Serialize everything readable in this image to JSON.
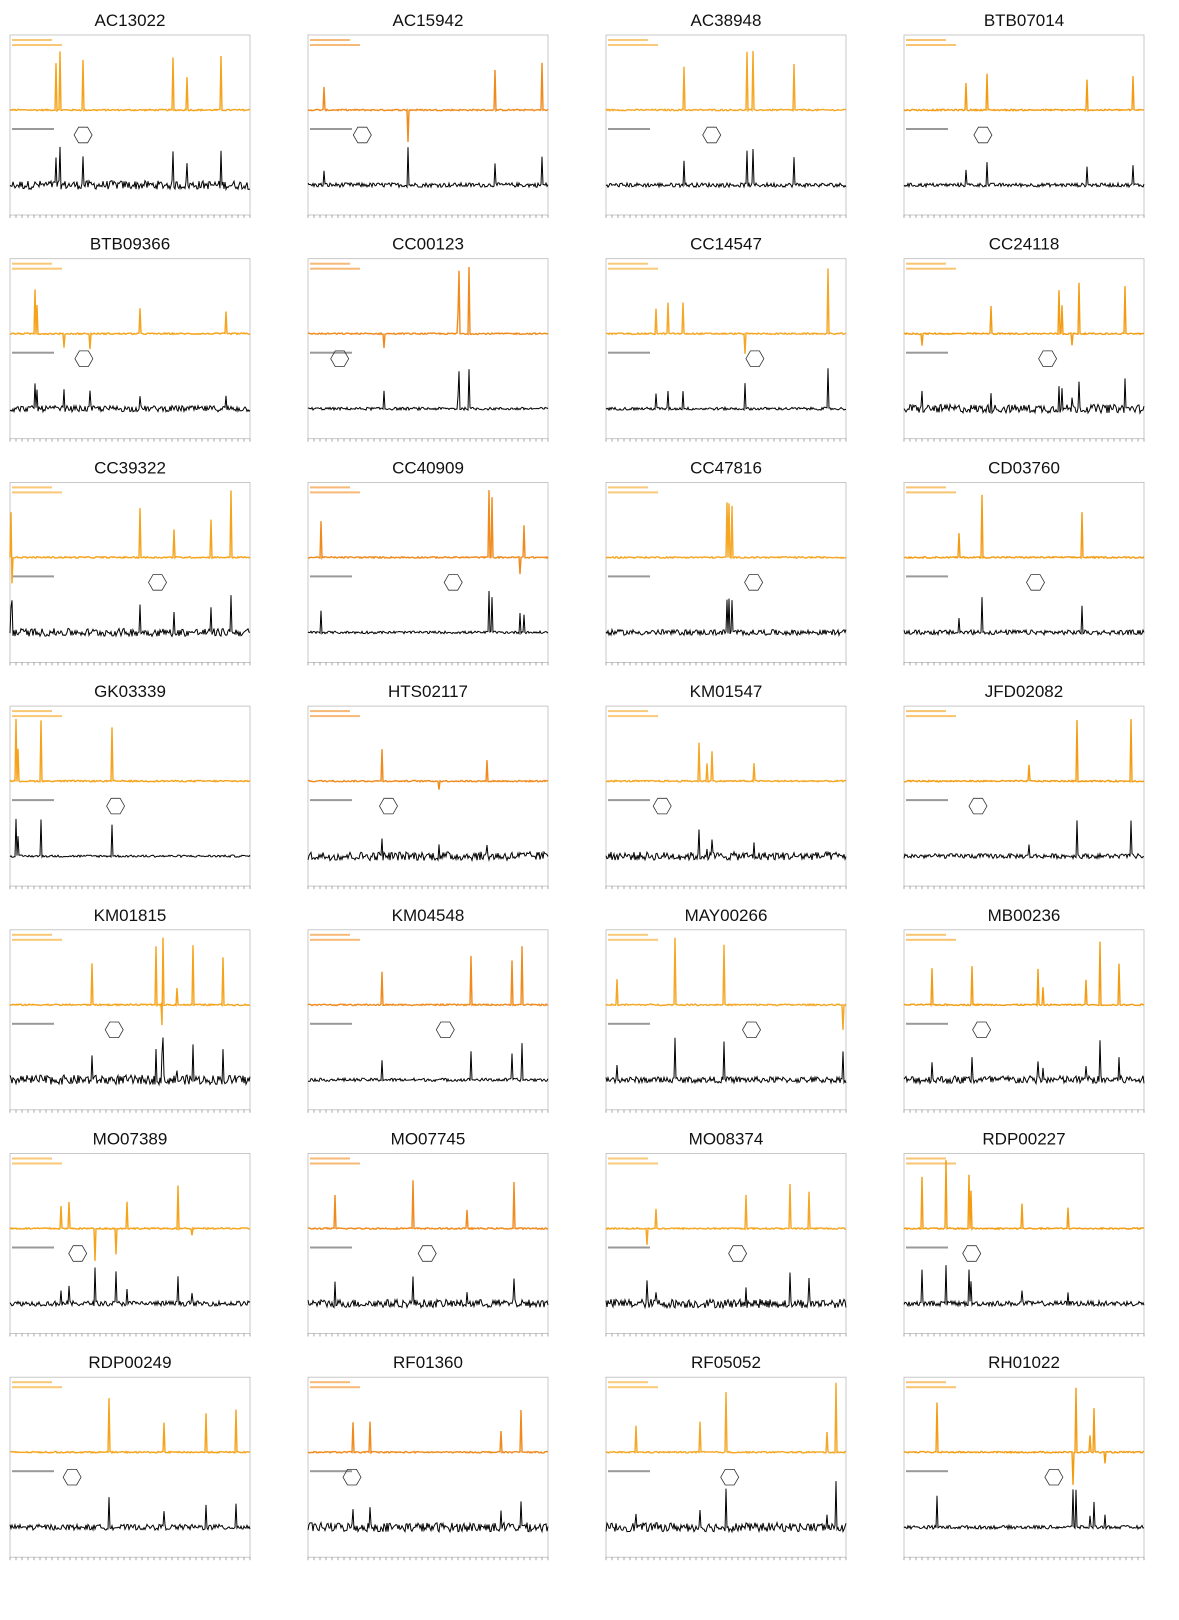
{
  "panels": [
    {
      "title": "AC13022"
    },
    {
      "title": "AC15942"
    },
    {
      "title": "AC38948"
    },
    {
      "title": "BTB07014"
    },
    {
      "title": "BTB09366"
    },
    {
      "title": "CC00123"
    },
    {
      "title": "CC14547"
    },
    {
      "title": "CC24118"
    },
    {
      "title": "CC39322"
    },
    {
      "title": "CC40909"
    },
    {
      "title": "CC47816"
    },
    {
      "title": "CD03760"
    },
    {
      "title": "GK03339"
    },
    {
      "title": "HTS02117"
    },
    {
      "title": "KM01547"
    },
    {
      "title": "JFD02082"
    },
    {
      "title": "KM01815"
    },
    {
      "title": "KM04548"
    },
    {
      "title": "MAY00266"
    },
    {
      "title": "MB00236"
    },
    {
      "title": "MO07389"
    },
    {
      "title": "MO07745"
    },
    {
      "title": "MO08374"
    },
    {
      "title": "RDP00227"
    },
    {
      "title": "RDP00249"
    },
    {
      "title": "RF01360"
    },
    {
      "title": "RF05052"
    },
    {
      "title": "RH01022"
    }
  ]
}
